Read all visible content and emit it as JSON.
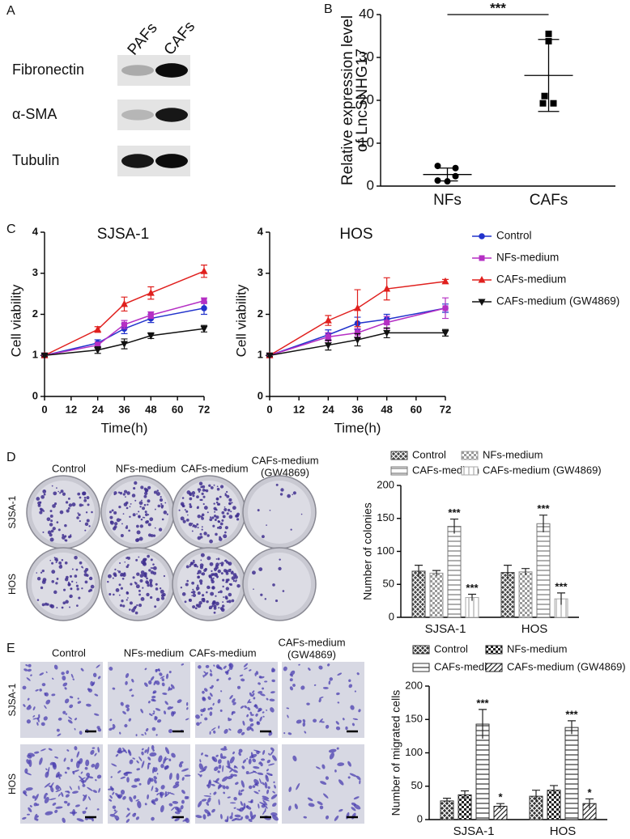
{
  "panels": {
    "A": {
      "label": "A",
      "columns": [
        "PAFs",
        "CAFs"
      ],
      "rows": [
        "Fibronectin",
        "α-SMA",
        "Tubulin"
      ]
    },
    "B": {
      "label": "B"
    },
    "C": {
      "label": "C"
    },
    "D": {
      "label": "D",
      "columns": [
        [
          "Control"
        ],
        [
          "NFs-medium"
        ],
        [
          "CAFs-medium"
        ],
        [
          "CAFs-medium",
          "(GW4869)"
        ]
      ],
      "rows": [
        "SJSA-1",
        "HOS"
      ]
    },
    "E": {
      "label": "E",
      "columns": [
        [
          "Control"
        ],
        [
          "NFs-medium"
        ],
        [
          "CAFs-medium"
        ],
        [
          "CAFs-medium",
          "(GW4869)"
        ]
      ],
      "rows": [
        "SJSA-1",
        "HOS"
      ]
    }
  },
  "chart_data": [
    {
      "type": "dot",
      "ylabel": [
        "Relative expression level",
        "of LncSNHG17"
      ],
      "categories": [
        "NFs",
        "CAFs"
      ],
      "values": [
        [
          4.7,
          4.2,
          2.3,
          1.3,
          1.1
        ],
        [
          35.5,
          33.8,
          21.0,
          19.3,
          19.3
        ]
      ],
      "means": [
        2.7,
        25.8
      ],
      "errors": [
        1.5,
        8.4
      ],
      "markers": [
        "circle",
        "square"
      ],
      "color": "#000000",
      "ylim": [
        0,
        40
      ],
      "yticks": [
        0,
        10,
        20,
        30,
        40
      ],
      "annotation": "***"
    },
    {
      "type": "line",
      "title": "SJSA-1",
      "xlabel": "Time(h)",
      "ylabel": "Cell viability",
      "x": [
        0,
        24,
        36,
        48,
        72
      ],
      "xlim": [
        0,
        72
      ],
      "xticks": [
        0,
        12,
        24,
        36,
        48,
        60,
        72
      ],
      "ylim": [
        0,
        4
      ],
      "yticks": [
        0,
        1,
        2,
        3,
        4
      ],
      "legend": "right",
      "series": [
        {
          "name": "Control",
          "color": "#2233cc",
          "marker": "circle",
          "values": [
            1,
            1.3,
            1.65,
            1.9,
            2.15
          ],
          "errors": [
            0.03,
            0.08,
            0.12,
            0.1,
            0.15
          ]
        },
        {
          "name": "NFs-medium",
          "color": "#b52fc4",
          "marker": "square",
          "values": [
            1,
            1.25,
            1.75,
            1.98,
            2.33
          ],
          "errors": [
            0.03,
            0.07,
            0.1,
            0.08,
            0.07
          ]
        },
        {
          "name": "CAFs-medium",
          "color": "#e0201e",
          "marker": "triangle",
          "values": [
            1,
            1.63,
            2.25,
            2.52,
            3.05
          ],
          "errors": [
            0.03,
            0.07,
            0.17,
            0.15,
            0.15
          ]
        },
        {
          "name": "CAFs-medium (GW4869)",
          "color": "#111111",
          "marker": "triangle-down",
          "values": [
            1,
            1.13,
            1.28,
            1.48,
            1.65
          ],
          "errors": [
            0.03,
            0.08,
            0.12,
            0.07,
            0.08
          ]
        }
      ]
    },
    {
      "type": "line",
      "title": "HOS",
      "xlabel": "Time(h)",
      "ylabel": "Cell viability",
      "x": [
        0,
        24,
        36,
        48,
        72
      ],
      "xlim": [
        0,
        72
      ],
      "xticks": [
        0,
        12,
        24,
        36,
        48,
        60,
        72
      ],
      "ylim": [
        0,
        4
      ],
      "yticks": [
        0,
        1,
        2,
        3,
        4
      ],
      "series": [
        {
          "color": "#2233cc",
          "marker": "circle",
          "values": [
            1,
            1.5,
            1.78,
            1.88,
            2.15
          ],
          "errors": [
            0.03,
            0.12,
            0.15,
            0.12,
            0.1
          ]
        },
        {
          "color": "#b52fc4",
          "marker": "square",
          "values": [
            1,
            1.45,
            1.55,
            1.8,
            2.15
          ],
          "errors": [
            0.03,
            0.1,
            0.1,
            0.15,
            0.25
          ]
        },
        {
          "color": "#e0201e",
          "marker": "triangle",
          "values": [
            1,
            1.85,
            2.15,
            2.62,
            2.8
          ],
          "errors": [
            0.03,
            0.12,
            0.45,
            0.27,
            0.05
          ]
        },
        {
          "color": "#111111",
          "marker": "triangle-down",
          "values": [
            1,
            1.25,
            1.38,
            1.55,
            1.55
          ],
          "errors": [
            0.03,
            0.12,
            0.15,
            0.12,
            0.08
          ]
        }
      ]
    },
    {
      "type": "bar",
      "ylabel": "Number of colonies",
      "categories": [
        "SJSA-1",
        "HOS"
      ],
      "ylim": [
        0,
        200
      ],
      "yticks": [
        0,
        50,
        100,
        150,
        200
      ],
      "legend": "top",
      "series": [
        {
          "name": "Control",
          "color": "#444444",
          "pattern": "crosshatch",
          "values": [
            70,
            68
          ],
          "errors": [
            9,
            11
          ]
        },
        {
          "name": "NFs-medium",
          "color": "#999999",
          "pattern": "checker",
          "values": [
            67,
            69
          ],
          "errors": [
            4,
            5
          ]
        },
        {
          "name": "CAFs-medium",
          "color": "#777777",
          "pattern": "hlines",
          "values": [
            138,
            142
          ],
          "errors": [
            11,
            13
          ],
          "value_annotations": [
            "***",
            "***"
          ]
        },
        {
          "name": "CAFs-medium (GW4869)",
          "color": "#aaaaaa",
          "pattern": "vlines",
          "values": [
            30,
            28
          ],
          "errors": [
            5,
            9
          ],
          "value_annotations": [
            "***",
            "***"
          ]
        }
      ]
    },
    {
      "type": "bar",
      "ylabel": "Number of migrated cells",
      "categories": [
        "SJSA-1",
        "HOS"
      ],
      "ylim": [
        0,
        200
      ],
      "yticks": [
        0,
        50,
        100,
        150,
        200
      ],
      "legend": "top",
      "series": [
        {
          "name": "Control",
          "color": "#333333",
          "pattern": "crosshatch",
          "values": [
            28,
            35
          ],
          "errors": [
            4,
            9
          ]
        },
        {
          "name": "NFs-medium",
          "color": "#222222",
          "pattern": "checker",
          "values": [
            37,
            44
          ],
          "errors": [
            6,
            7
          ]
        },
        {
          "name": "CAFs-medium",
          "color": "#333333",
          "pattern": "hlines",
          "values": [
            143,
            138
          ],
          "errors": [
            22,
            10
          ],
          "value_annotations": [
            "***",
            "***"
          ]
        },
        {
          "name": "CAFs-medium (GW4869)",
          "color": "#222222",
          "pattern": "diagonal",
          "values": [
            20,
            24
          ],
          "errors": [
            4,
            7
          ],
          "value_annotations": [
            "*",
            "*"
          ]
        }
      ]
    }
  ]
}
